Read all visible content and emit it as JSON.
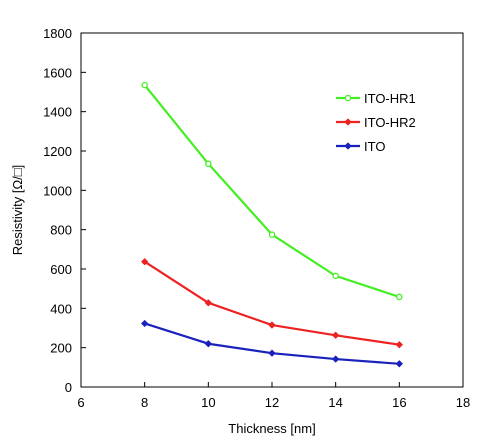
{
  "chart_data": {
    "type": "line",
    "title": "",
    "xlabel": "Thickness [nm]",
    "ylabel": "Resistivity [Ω/□]",
    "xlim": [
      6,
      18
    ],
    "ylim": [
      0,
      1800
    ],
    "xticks": [
      6,
      8,
      10,
      12,
      14,
      16,
      18
    ],
    "yticks": [
      0,
      200,
      400,
      600,
      800,
      1000,
      1200,
      1400,
      1600,
      1800
    ],
    "grid": false,
    "legend_position": "top-right",
    "series": [
      {
        "name": "ITO-HR1",
        "color": "#44ee22",
        "marker": "open-circle",
        "x": [
          8,
          10,
          12,
          14,
          16
        ],
        "y": [
          1535,
          1135,
          775,
          565,
          458
        ]
      },
      {
        "name": "ITO-HR2",
        "color": "#ee2222",
        "marker": "filled-diamond",
        "x": [
          8,
          10,
          12,
          14,
          16
        ],
        "y": [
          637,
          428,
          315,
          263,
          215
        ]
      },
      {
        "name": "ITO",
        "color": "#1a22bb",
        "marker": "filled-diamond",
        "x": [
          8,
          10,
          12,
          14,
          16
        ],
        "y": [
          323,
          220,
          172,
          142,
          118
        ]
      }
    ]
  }
}
